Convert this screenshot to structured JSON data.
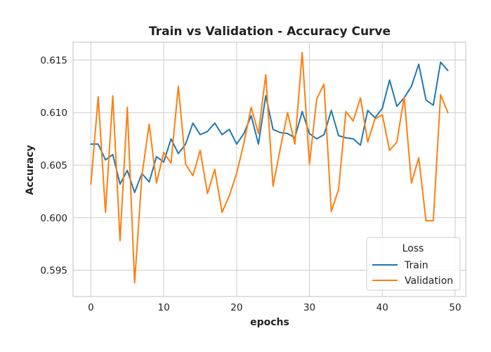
{
  "chart_data": {
    "type": "line",
    "title": "Train vs Validation - Accuracy Curve",
    "xlabel": "epochs",
    "ylabel": "Accuracy",
    "xlim": [
      -2.45,
      51.45
    ],
    "ylim": [
      0.5925,
      0.6167
    ],
    "xticks": [
      0,
      10,
      20,
      30,
      40,
      50
    ],
    "xtick_labels": [
      "0",
      "10",
      "20",
      "30",
      "40",
      "50"
    ],
    "yticks": [
      0.595,
      0.6,
      0.605,
      0.61,
      0.615
    ],
    "ytick_labels": [
      "0.595",
      "0.600",
      "0.605",
      "0.610",
      "0.615"
    ],
    "grid": true,
    "legend": {
      "title": "Loss",
      "position": "lower-right"
    },
    "x": [
      0,
      1,
      2,
      3,
      4,
      5,
      6,
      7,
      8,
      9,
      10,
      11,
      12,
      13,
      14,
      15,
      16,
      17,
      18,
      19,
      20,
      21,
      22,
      23,
      24,
      25,
      26,
      27,
      28,
      29,
      30,
      31,
      32,
      33,
      34,
      35,
      36,
      37,
      38,
      39,
      40,
      41,
      42,
      43,
      44,
      45,
      46,
      47,
      48,
      49
    ],
    "series": [
      {
        "name": "Train",
        "color": "#1f77b4",
        "values": [
          0.607,
          0.607,
          0.6055,
          0.606,
          0.6032,
          0.6045,
          0.6024,
          0.6042,
          0.6034,
          0.6058,
          0.6053,
          0.6075,
          0.6061,
          0.607,
          0.609,
          0.6079,
          0.6082,
          0.609,
          0.6079,
          0.6084,
          0.607,
          0.608,
          0.6097,
          0.607,
          0.6116,
          0.6084,
          0.6081,
          0.608,
          0.6076,
          0.6101,
          0.608,
          0.6075,
          0.6079,
          0.6102,
          0.6078,
          0.6076,
          0.6075,
          0.6069,
          0.6102,
          0.6095,
          0.6104,
          0.6131,
          0.6106,
          0.6114,
          0.6125,
          0.6146,
          0.6112,
          0.6107,
          0.6148,
          0.614
        ]
      },
      {
        "name": "Validation",
        "color": "#ff7f0e",
        "values": [
          0.6032,
          0.6115,
          0.6005,
          0.6116,
          0.5978,
          0.6105,
          0.5938,
          0.604,
          0.6089,
          0.6033,
          0.6062,
          0.6052,
          0.6125,
          0.6051,
          0.604,
          0.6064,
          0.6023,
          0.6046,
          0.6005,
          0.6021,
          0.6042,
          0.6071,
          0.6105,
          0.608,
          0.6136,
          0.603,
          0.6066,
          0.61,
          0.607,
          0.6157,
          0.6051,
          0.6113,
          0.6127,
          0.6006,
          0.6027,
          0.6101,
          0.6092,
          0.6114,
          0.6072,
          0.6094,
          0.6098,
          0.6064,
          0.6072,
          0.6115,
          0.6033,
          0.6057,
          0.5997,
          0.5997,
          0.6117,
          0.61
        ]
      }
    ]
  }
}
